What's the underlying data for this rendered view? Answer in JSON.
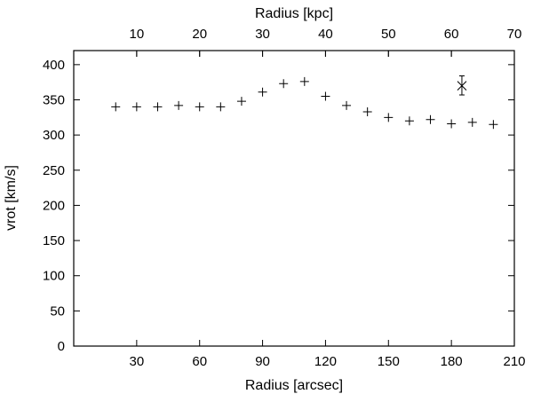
{
  "chart_data": {
    "type": "scatter",
    "xlabel": "Radius [arcsec]",
    "ylabel": "vrot [km/s]",
    "x2label": "Radius [kpc]",
    "xlim": [
      0,
      210
    ],
    "ylim": [
      0,
      420
    ],
    "x2lim": [
      0,
      70
    ],
    "x_ticks": [
      30,
      60,
      90,
      120,
      150,
      180,
      210
    ],
    "y_ticks": [
      0,
      50,
      100,
      150,
      200,
      250,
      300,
      350,
      400
    ],
    "x2_ticks": [
      10,
      20,
      30,
      40,
      50,
      60,
      70
    ],
    "grid": false,
    "series": [
      {
        "marker": "plus",
        "points": [
          {
            "x": 20,
            "y": 340
          },
          {
            "x": 30,
            "y": 340
          },
          {
            "x": 40,
            "y": 340
          },
          {
            "x": 50,
            "y": 342
          },
          {
            "x": 60,
            "y": 340
          },
          {
            "x": 70,
            "y": 340
          },
          {
            "x": 80,
            "y": 348
          },
          {
            "x": 90,
            "y": 361
          },
          {
            "x": 100,
            "y": 373
          },
          {
            "x": 110,
            "y": 376
          },
          {
            "x": 120,
            "y": 355
          },
          {
            "x": 130,
            "y": 342
          },
          {
            "x": 140,
            "y": 333
          },
          {
            "x": 150,
            "y": 325
          },
          {
            "x": 160,
            "y": 320
          },
          {
            "x": 170,
            "y": 322
          },
          {
            "x": 180,
            "y": 316
          },
          {
            "x": 190,
            "y": 318
          },
          {
            "x": 200,
            "y": 315
          }
        ]
      },
      {
        "marker": "cross",
        "error_bars": true,
        "points": [
          {
            "x": 185,
            "y": 370,
            "yerr_low": 357,
            "yerr_high": 384
          }
        ]
      }
    ]
  }
}
